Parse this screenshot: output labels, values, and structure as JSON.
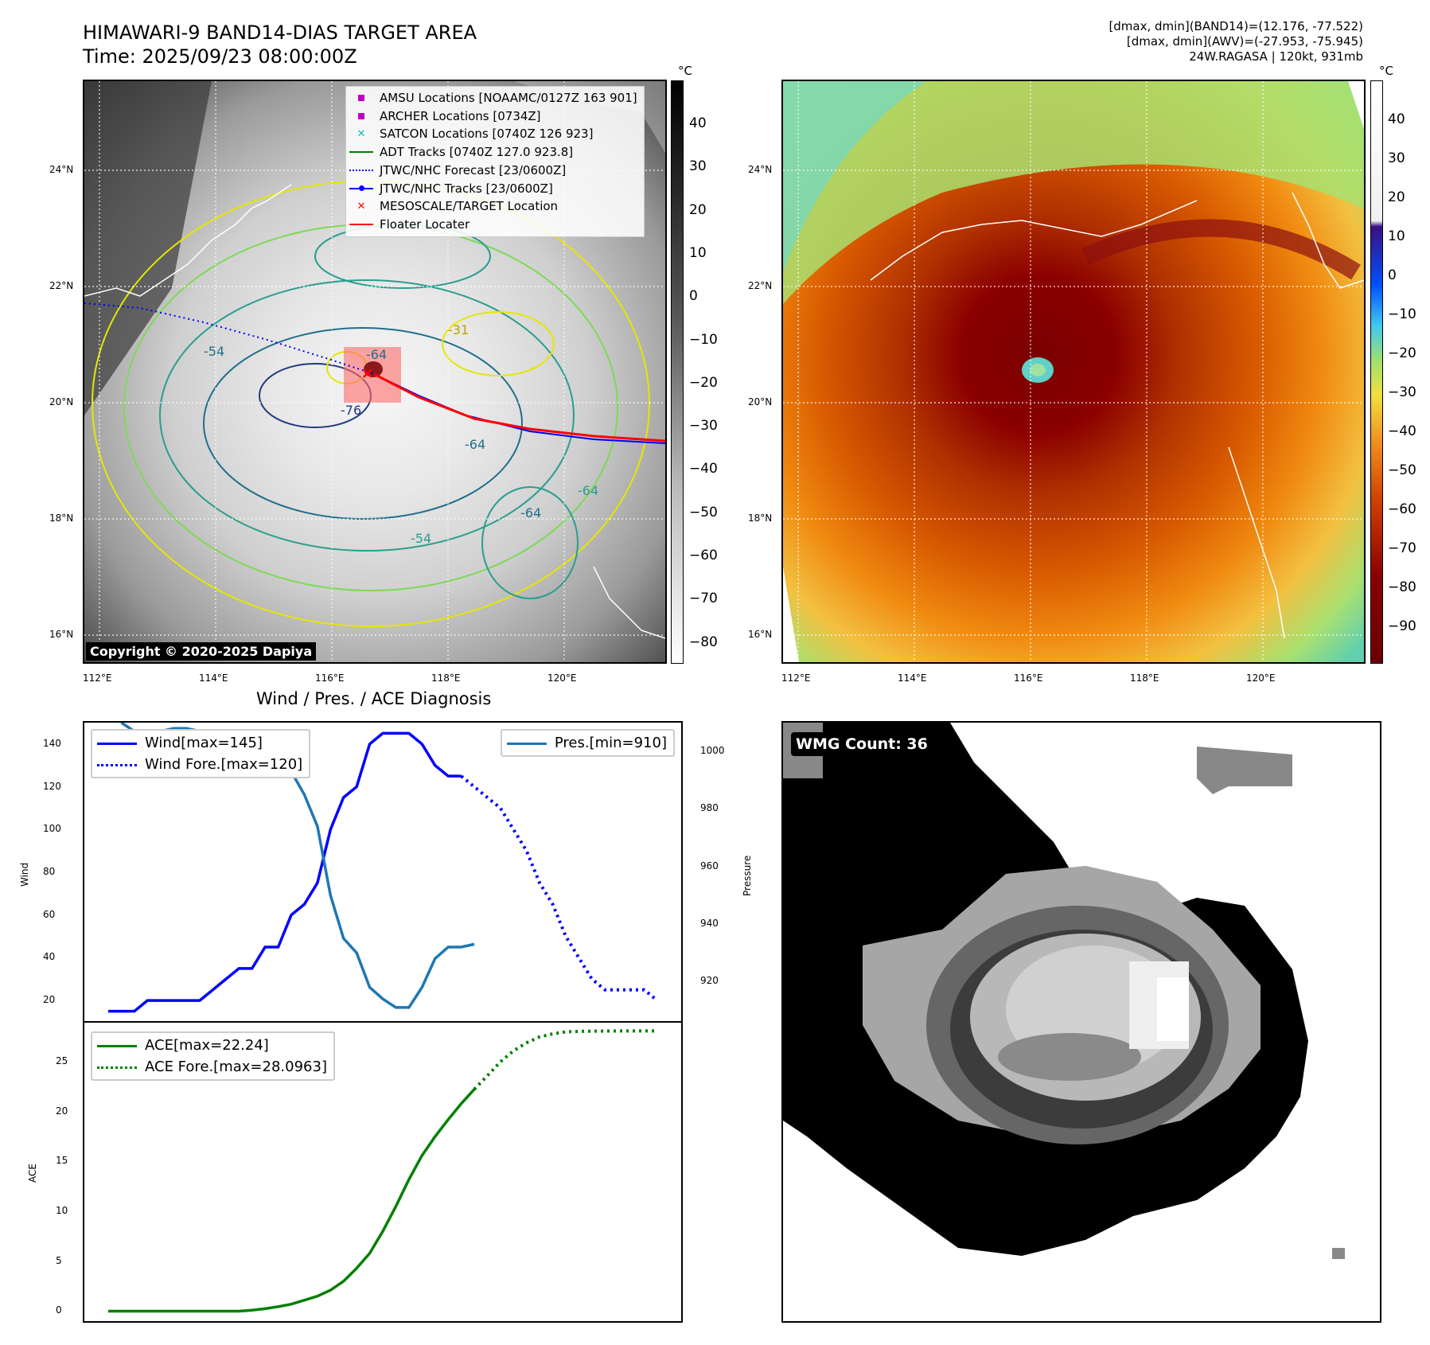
{
  "header": {
    "title_line1": "HIMAWARI-9 BAND14-DIAS TARGET AREA",
    "title_line2": "Time: 2025/09/23 08:00:00Z",
    "info_line1": "[dmax, dmin](BAND14)=(12.176, -77.522)",
    "info_line2": "[dmax, dmin](AWV)=(-27.953, -75.945)",
    "info_line3": "24W.RAGASA | 120kt, 931mb"
  },
  "map_axes": {
    "lon_labels": [
      "112°E",
      "114°E",
      "116°E",
      "118°E",
      "120°E"
    ],
    "lat_labels": [
      "24°N",
      "22°N",
      "20°N",
      "18°N",
      "16°N"
    ]
  },
  "colorbar_left": {
    "unit": "°C",
    "ticks": [
      "40",
      "30",
      "20",
      "10",
      "0",
      "−10",
      "−20",
      "−30",
      "−40",
      "−50",
      "−60",
      "−70",
      "−80"
    ]
  },
  "colorbar_right": {
    "unit": "°C",
    "ticks": [
      "40",
      "30",
      "20",
      "10",
      "0",
      "−10",
      "−20",
      "−30",
      "−40",
      "−50",
      "−60",
      "−70",
      "−80",
      "−90"
    ]
  },
  "map_legend": {
    "items": [
      {
        "label": "AMSU Locations [NOAAMC/0127Z 163 901]",
        "icon": "square",
        "color": "#c000c0"
      },
      {
        "label": "ARCHER Locations [0734Z]",
        "icon": "square",
        "color": "#c000c0"
      },
      {
        "label": "SATCON Locations [0740Z 126 923]",
        "icon": "x",
        "color": "#00c0c0"
      },
      {
        "label": "ADT Tracks [0740Z 127.0 923.8]",
        "icon": "line",
        "color": "#008000"
      },
      {
        "label": "JTWC/NHC Forecast [23/0600Z]",
        "icon": "dotted-line",
        "color": "#0000ff"
      },
      {
        "label": "JTWC/NHC Tracks [23/0600Z]",
        "icon": "line-dot",
        "color": "#0000ff"
      },
      {
        "label": "MESOSCALE/TARGET Location",
        "icon": "x",
        "color": "#ff0000"
      },
      {
        "label": "Floater Locater",
        "icon": "line",
        "color": "#ff0000"
      }
    ]
  },
  "contour_labels": [
    "-64",
    "-31",
    "-54",
    "-76",
    "-64",
    "-64",
    "-54",
    "-64"
  ],
  "copyright": "Copyright © 2020-2025 Dapiya",
  "diag_title": "Wind / Pres. / ACE Diagnosis",
  "wmg": "WMG Count: 36",
  "colors": {
    "wind": "#0000ff",
    "pressure": "#1f77b4",
    "ace": "#008000"
  },
  "chart_data": [
    {
      "type": "line",
      "xlabel": "",
      "ylabel": "Wind",
      "y2label": "Pressure",
      "ylim": [
        10,
        150
      ],
      "y2lim": [
        906,
        1010
      ],
      "yticks": [
        "140",
        "120",
        "100",
        "80",
        "60",
        "40",
        "20"
      ],
      "y2ticks": [
        "1000",
        "980",
        "960",
        "940",
        "920"
      ],
      "x": [
        0,
        1,
        2,
        3,
        4,
        5,
        6,
        7,
        8,
        9,
        10,
        11,
        12,
        13,
        14,
        15,
        16,
        17,
        18,
        19,
        20,
        21,
        22,
        23,
        24,
        25,
        26,
        27,
        28,
        29,
        30,
        31,
        32,
        33,
        34,
        35,
        36,
        37,
        38,
        39,
        40,
        41,
        42
      ],
      "series": [
        {
          "name": "Wind[max=145]",
          "axis": "left",
          "style": "solid",
          "x": [
            0,
            1,
            2,
            3,
            4,
            5,
            6,
            7,
            8,
            9,
            10,
            11,
            12,
            13,
            14,
            15,
            16,
            17,
            18,
            19,
            20,
            21,
            22,
            23,
            24,
            25,
            26,
            27
          ],
          "values": [
            15,
            15,
            15,
            20,
            20,
            20,
            20,
            20,
            25,
            30,
            35,
            35,
            45,
            45,
            60,
            65,
            75,
            100,
            115,
            120,
            140,
            145,
            145,
            145,
            140,
            130,
            125,
            125
          ]
        },
        {
          "name": "Wind Fore.[max=120]",
          "axis": "left",
          "style": "dotted",
          "x": [
            28,
            29,
            30,
            31,
            32,
            33,
            34,
            35,
            36,
            37,
            38,
            39,
            40,
            41,
            42
          ],
          "values": [
            120,
            115,
            110,
            100,
            90,
            75,
            65,
            50,
            40,
            30,
            25,
            25,
            25,
            25,
            20
          ]
        },
        {
          "name": "Pres.[min=910]",
          "axis": "right",
          "style": "solid",
          "x": [
            1,
            2,
            3,
            4,
            5,
            6,
            7,
            8,
            9,
            10,
            11,
            12,
            13,
            14,
            15,
            16,
            17,
            18,
            19,
            20,
            21,
            22,
            23,
            24,
            25,
            26,
            27,
            28
          ],
          "values": [
            1010,
            1007,
            1007,
            1007,
            1008,
            1008,
            1007,
            1005,
            1004,
            1002,
            1000,
            998,
            996,
            993,
            985,
            974,
            950,
            935,
            930,
            918,
            914,
            911,
            911,
            918,
            928,
            932,
            932,
            933
          ]
        }
      ]
    },
    {
      "type": "line",
      "xlabel": "",
      "ylabel": "ACE",
      "ylim": [
        -1,
        29
      ],
      "yticks": [
        "25",
        "20",
        "15",
        "10",
        "5",
        "0"
      ],
      "series": [
        {
          "name": "ACE[max=22.24]",
          "style": "solid",
          "x": [
            0,
            1,
            2,
            3,
            4,
            5,
            6,
            7,
            8,
            9,
            10,
            11,
            12,
            13,
            14,
            15,
            16,
            17,
            18,
            19,
            20,
            21,
            22,
            23,
            24,
            25,
            26,
            27,
            28
          ],
          "values": [
            0,
            0,
            0,
            0,
            0,
            0,
            0,
            0,
            0,
            0,
            0,
            0.1,
            0.25,
            0.45,
            0.7,
            1.1,
            1.5,
            2.1,
            3.0,
            4.3,
            5.8,
            8.0,
            10.5,
            13.2,
            15.6,
            17.5,
            19.2,
            20.8,
            22.24
          ]
        },
        {
          "name": "ACE Fore.[max=28.0963]",
          "style": "dotted",
          "x": [
            28,
            29,
            30,
            31,
            32,
            33,
            34,
            35,
            36,
            37,
            38,
            39,
            40,
            41,
            42
          ],
          "values": [
            22.24,
            23.6,
            25.0,
            26.1,
            26.9,
            27.5,
            27.8,
            28.0,
            28.05,
            28.07,
            28.08,
            28.09,
            28.09,
            28.09,
            28.0963
          ]
        }
      ]
    }
  ]
}
